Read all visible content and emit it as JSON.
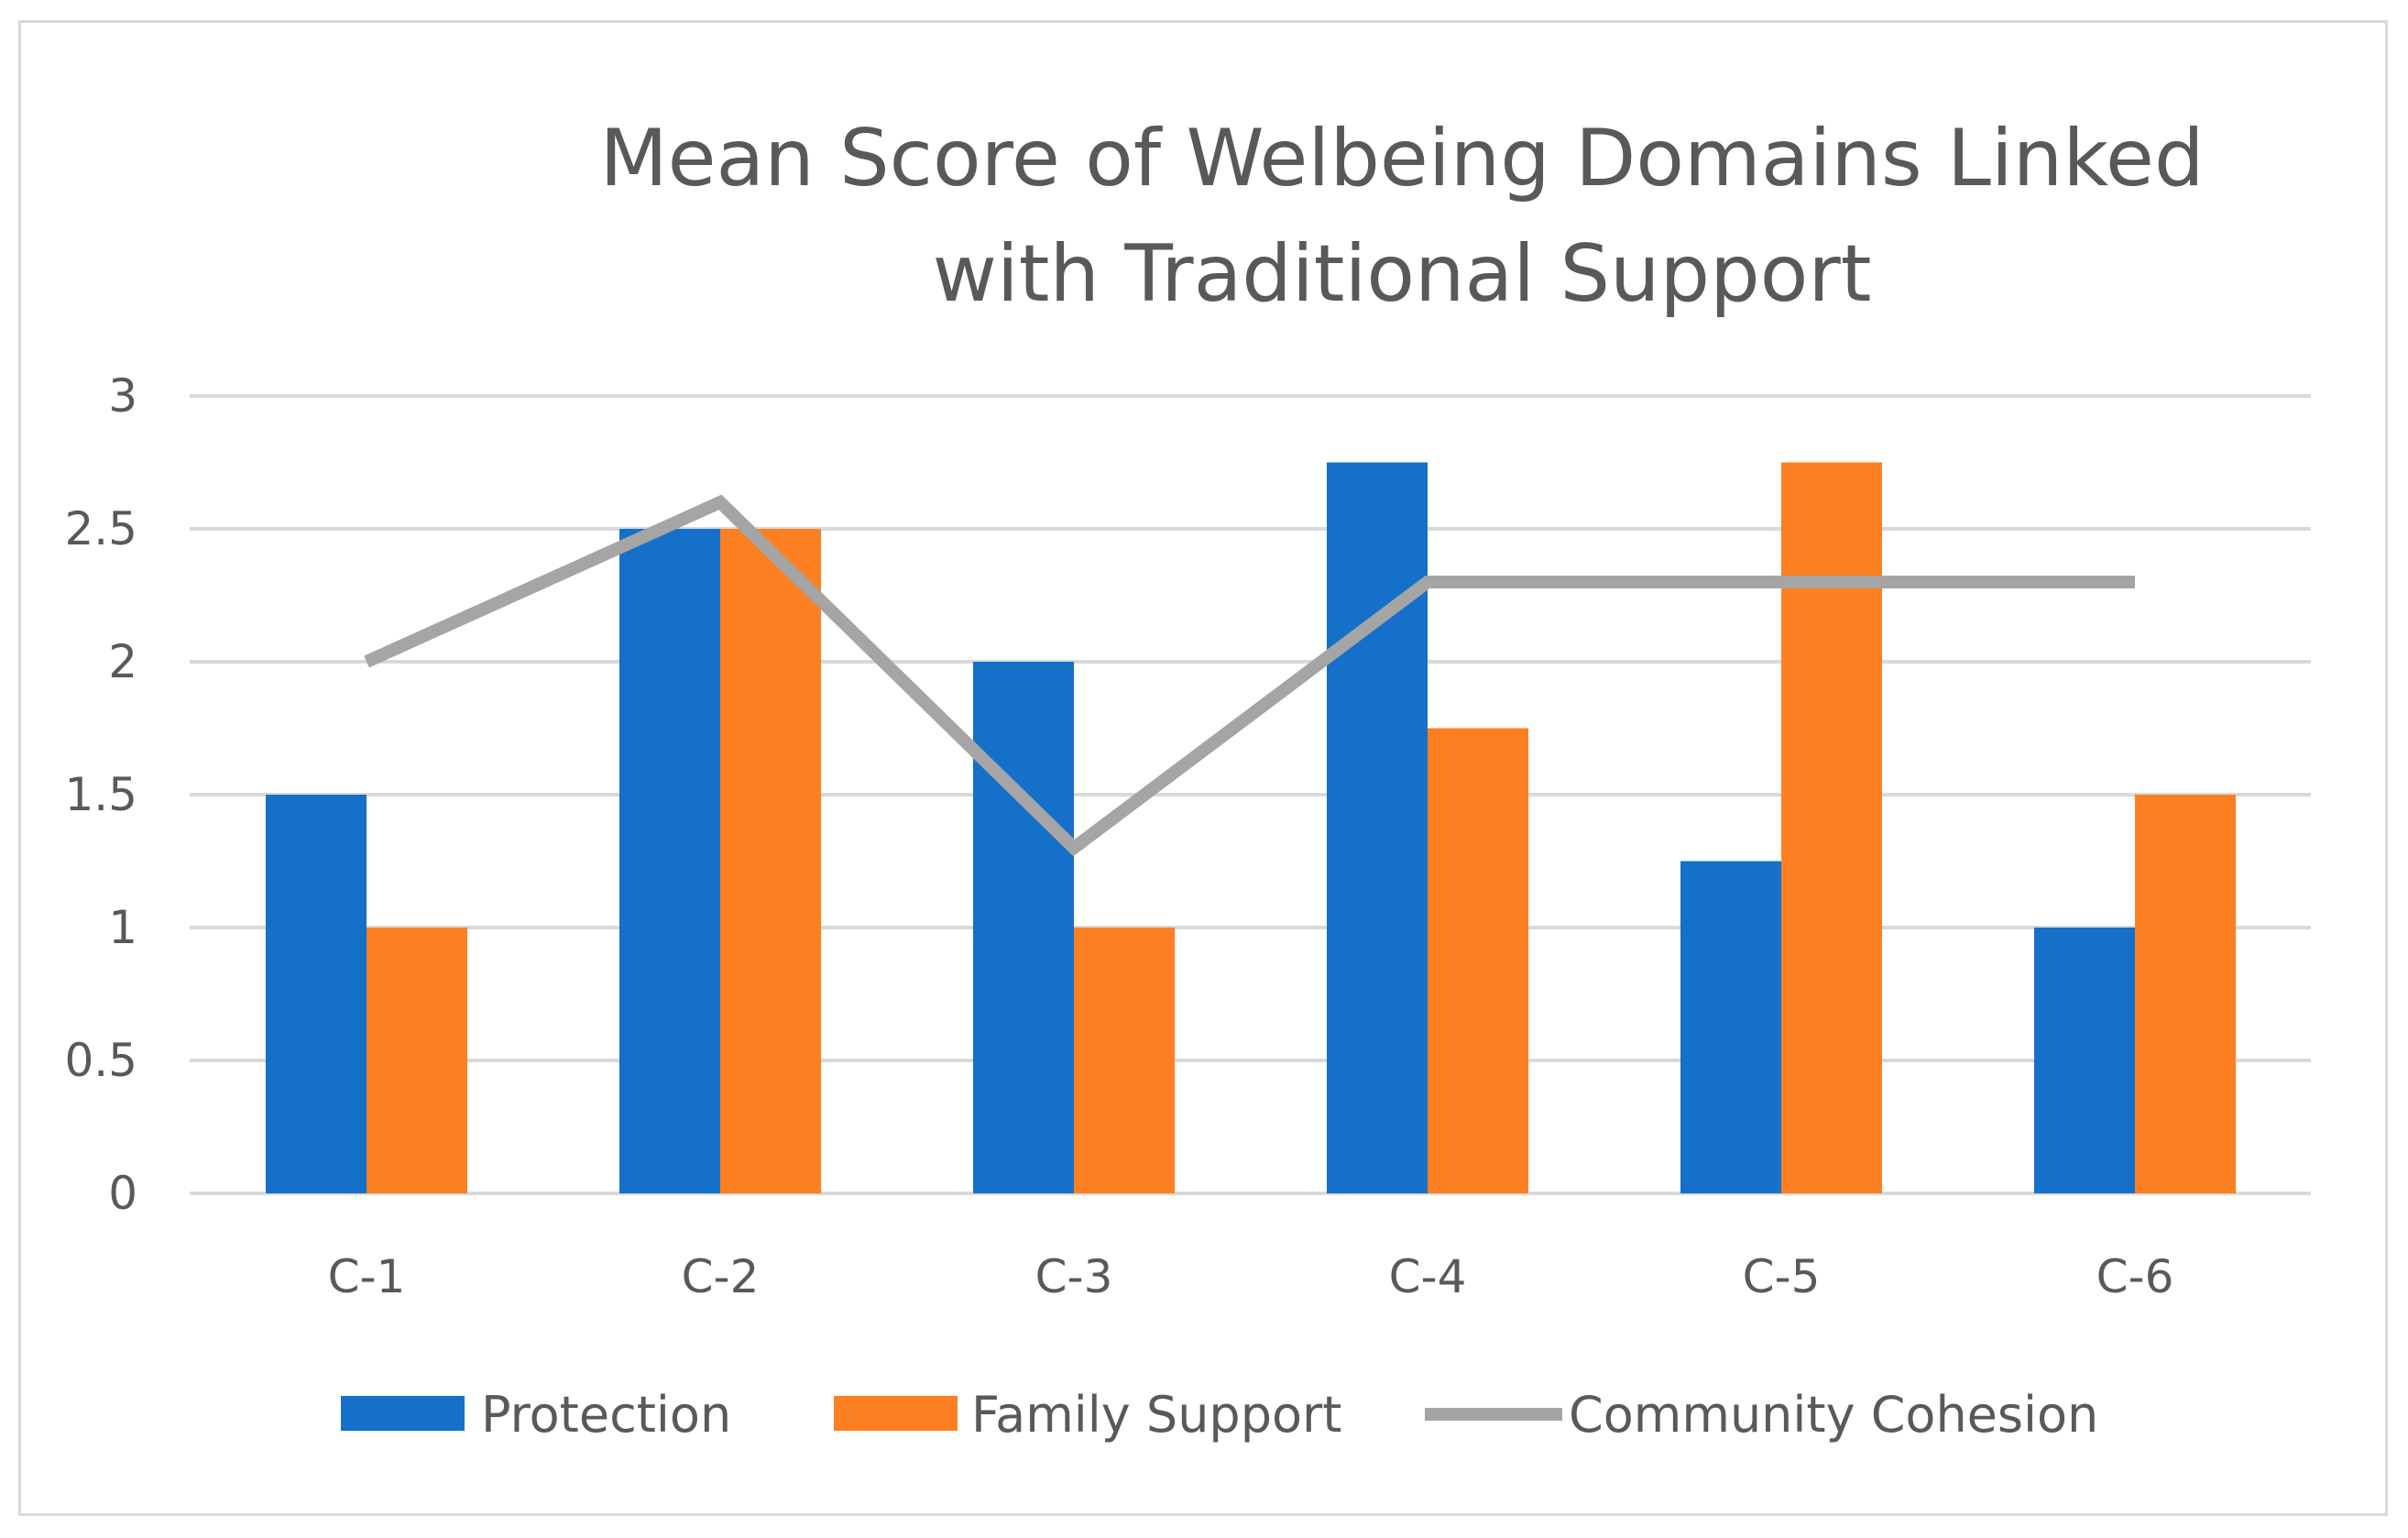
{
  "chart_data": {
    "type": "bar",
    "title": "Mean Score of Welbeing Domains Linked with Traditional Support",
    "categories": [
      "C-1",
      "C-2",
      "C-3",
      "C-4",
      "C-5",
      "C-6"
    ],
    "ylim": [
      0,
      3
    ],
    "yticks": [
      "0",
      "0.5",
      "1",
      "1.5",
      "2",
      "2.5",
      "3"
    ],
    "ytick_values": [
      0,
      0.5,
      1,
      1.5,
      2,
      2.5,
      3
    ],
    "grid": true,
    "legend_position": "bottom",
    "series": [
      {
        "name": "Protection",
        "kind": "bar",
        "color": "#1570c9",
        "values": [
          1.5,
          2.5,
          2,
          2.75,
          1.25,
          1
        ]
      },
      {
        "name": "Family Support",
        "kind": "bar",
        "color": "#fc7f22",
        "values": [
          1,
          2.5,
          1,
          1.75,
          2.75,
          1.5
        ]
      },
      {
        "name": "Community Cohesion",
        "kind": "line",
        "color": "#a5a5a5",
        "values": [
          2,
          2.6,
          1.3,
          2.3,
          2.3,
          2.3
        ]
      }
    ]
  }
}
